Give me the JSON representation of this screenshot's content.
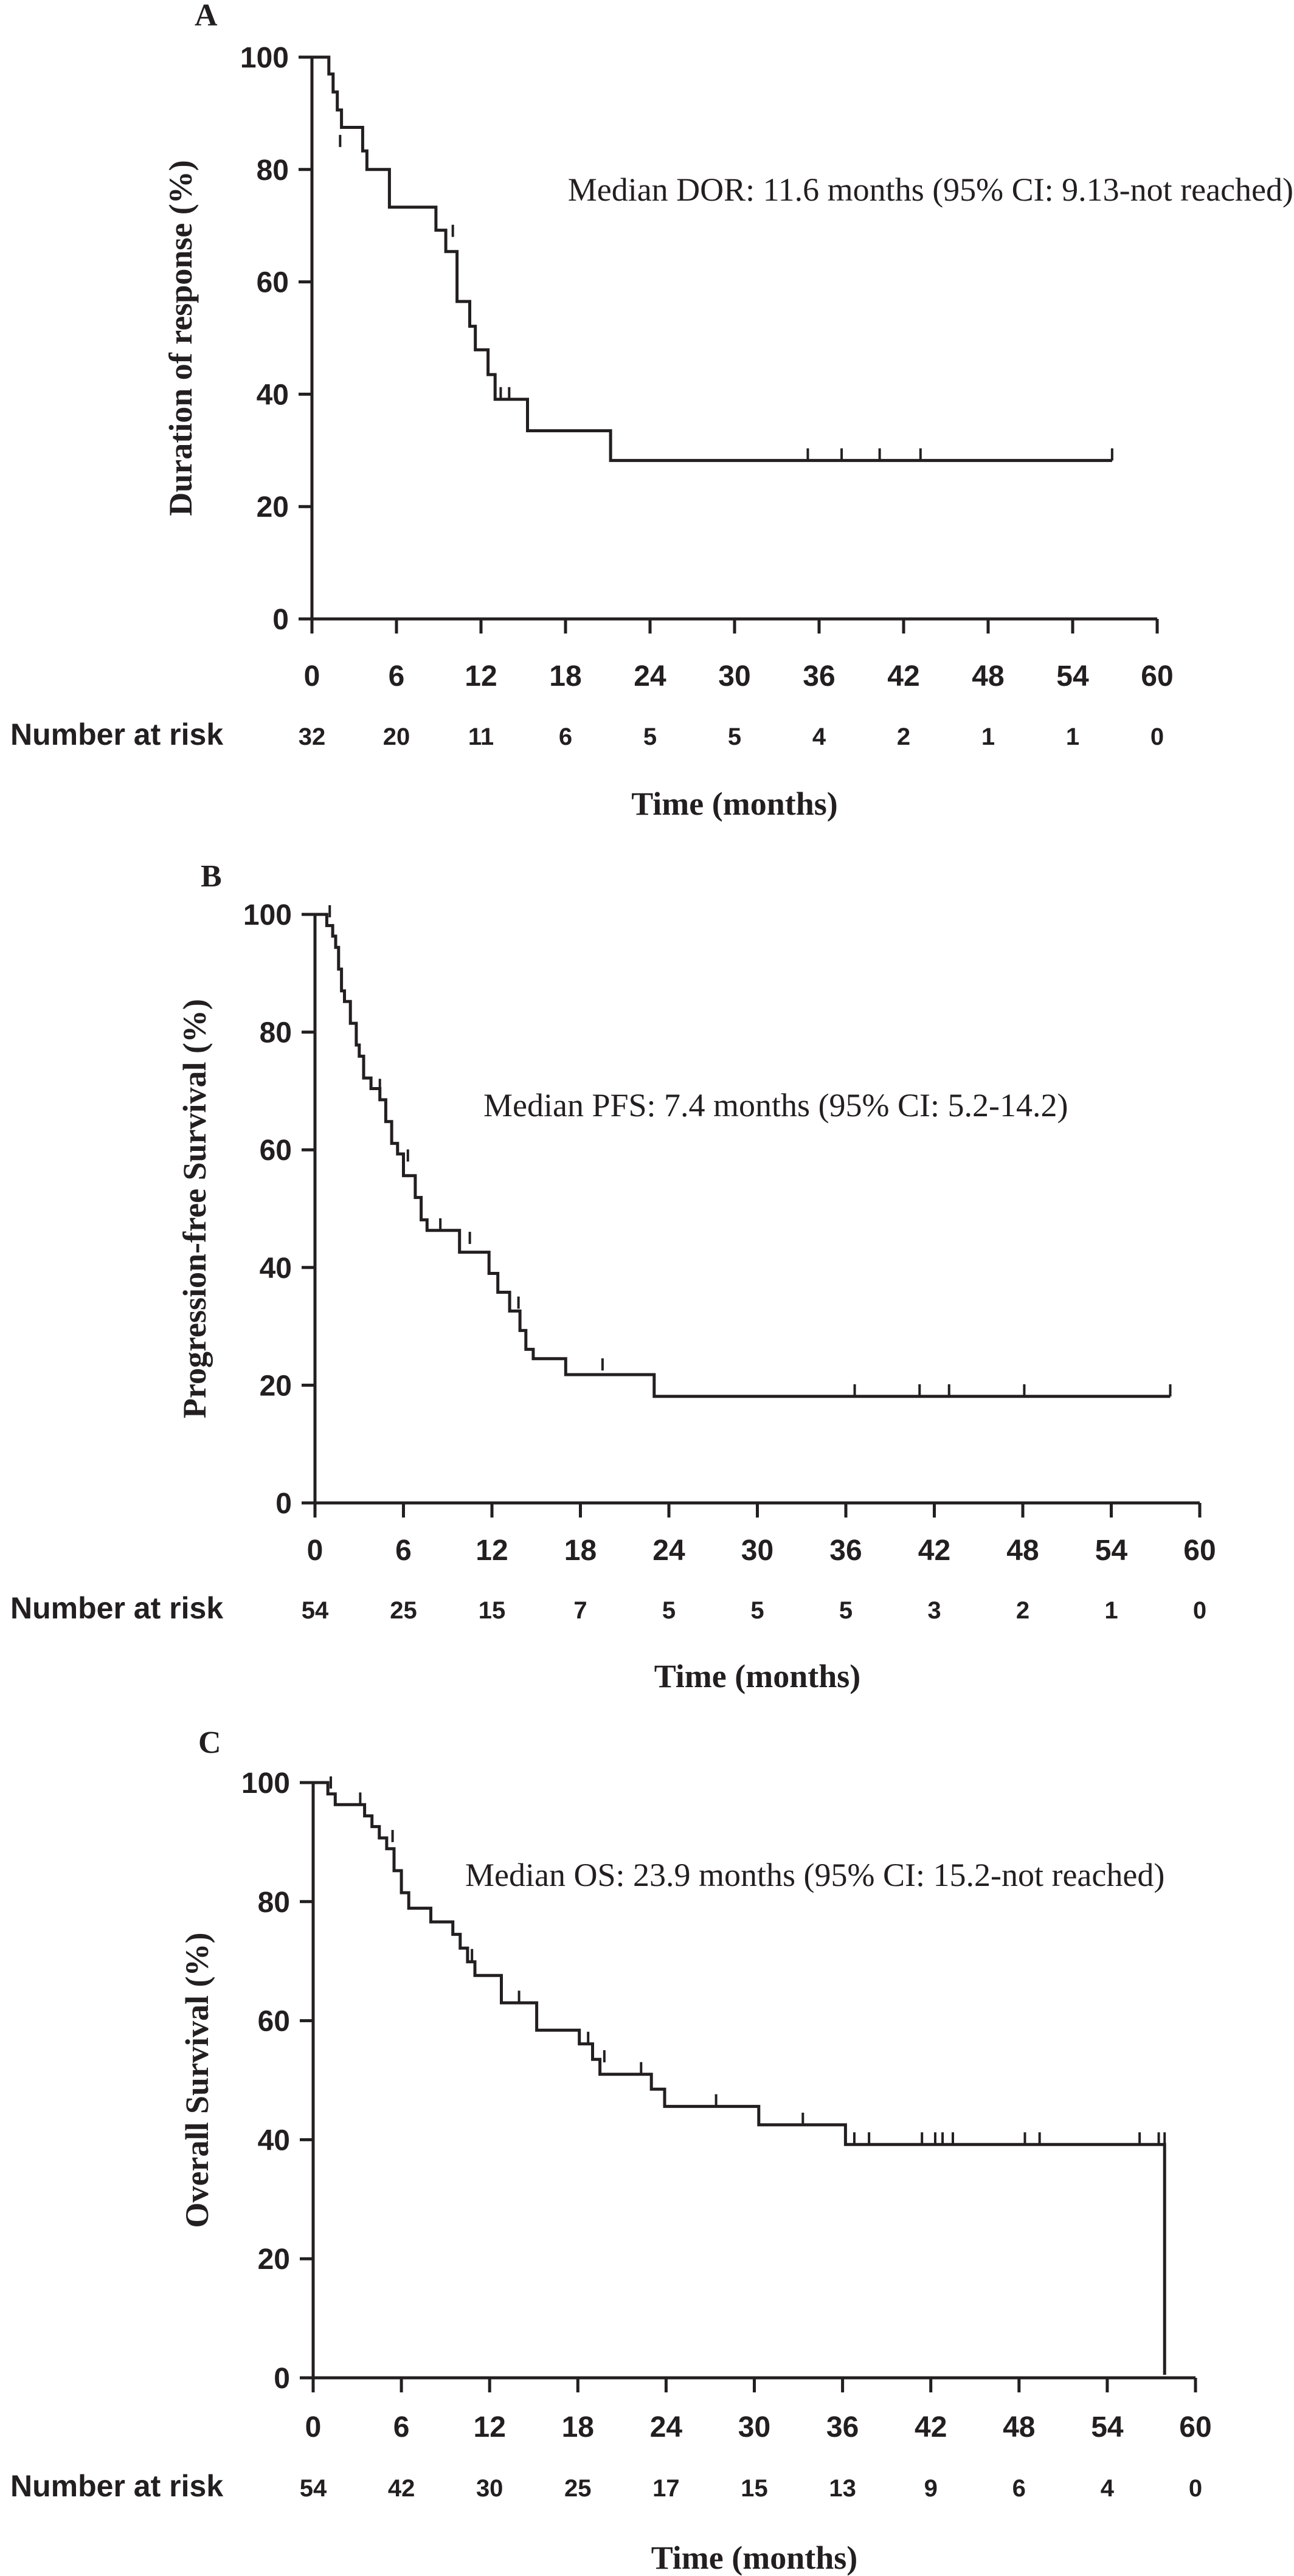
{
  "chart_data": [
    {
      "type": "line",
      "panel_label": "A",
      "ylabel": "Duration of response (%)",
      "xlabel": "Time (months)",
      "annotation": "Median DOR: 11.6 months (95% CI: 9.13-not reached)",
      "xlim": [
        0,
        60
      ],
      "ylim": [
        0,
        100
      ],
      "xticks": [
        0,
        6,
        12,
        18,
        24,
        30,
        36,
        42,
        48,
        54,
        60
      ],
      "yticks": [
        0,
        20,
        40,
        60,
        80,
        100
      ],
      "risk_title": "Number at risk",
      "risk_numbers": [
        "32",
        "20",
        "11",
        "6",
        "5",
        "5",
        "4",
        "2",
        "1",
        "1",
        "0"
      ],
      "curve": [
        [
          0,
          100
        ],
        [
          1.2,
          100
        ],
        [
          1.2,
          97
        ],
        [
          1.5,
          97
        ],
        [
          1.5,
          93.8
        ],
        [
          1.8,
          93.8
        ],
        [
          1.8,
          90.6
        ],
        [
          2.1,
          90.6
        ],
        [
          2.1,
          87.5
        ],
        [
          3.6,
          87.5
        ],
        [
          3.6,
          83.3
        ],
        [
          3.9,
          83.3
        ],
        [
          3.9,
          80
        ],
        [
          5.5,
          80
        ],
        [
          5.5,
          73.3
        ],
        [
          8.8,
          73.3
        ],
        [
          8.8,
          69.2
        ],
        [
          9.5,
          69.2
        ],
        [
          9.5,
          65.4
        ],
        [
          10.3,
          65.4
        ],
        [
          10.3,
          56.5
        ],
        [
          11.2,
          56.5
        ],
        [
          11.2,
          52.1
        ],
        [
          11.6,
          52.1
        ],
        [
          11.6,
          47.9
        ],
        [
          12.5,
          47.9
        ],
        [
          12.5,
          43.5
        ],
        [
          13,
          43.5
        ],
        [
          13,
          39.1
        ],
        [
          15.3,
          39.1
        ],
        [
          15.3,
          33.5
        ],
        [
          21.2,
          33.5
        ],
        [
          21.2,
          28.2
        ],
        [
          56.8,
          28.2
        ]
      ],
      "censors": [
        [
          2,
          84
        ],
        [
          10,
          68
        ],
        [
          13.4,
          39.1
        ],
        [
          14,
          39.1
        ],
        [
          35.2,
          28.2
        ],
        [
          37.6,
          28.2
        ],
        [
          40.3,
          28.2
        ],
        [
          43.2,
          28.2
        ],
        [
          56.8,
          28.2
        ]
      ],
      "risk_label_shift": [
        0,
        0,
        0,
        0,
        0,
        0,
        0,
        0,
        0,
        0,
        0
      ]
    },
    {
      "type": "line",
      "panel_label": "B",
      "ylabel": "Progression-free Survival (%)",
      "xlabel": "Time (months)",
      "annotation": "Median PFS: 7.4 months (95% CI: 5.2-14.2)",
      "xlim": [
        0,
        60
      ],
      "ylim": [
        0,
        100
      ],
      "xticks": [
        0,
        6,
        12,
        18,
        24,
        30,
        36,
        42,
        48,
        54,
        60
      ],
      "yticks": [
        0,
        20,
        40,
        60,
        80,
        100
      ],
      "risk_title": "Number at risk",
      "risk_numbers": [
        "54",
        "25",
        "15",
        "7",
        "5",
        "5",
        "5",
        "3",
        "2",
        "1",
        "0"
      ],
      "curve": [
        [
          0,
          100
        ],
        [
          0.8,
          100
        ],
        [
          0.8,
          98.1
        ],
        [
          1.2,
          98.1
        ],
        [
          1.2,
          96.3
        ],
        [
          1.4,
          96.3
        ],
        [
          1.4,
          94.4
        ],
        [
          1.6,
          94.4
        ],
        [
          1.6,
          90.7
        ],
        [
          1.8,
          90.7
        ],
        [
          1.8,
          87
        ],
        [
          2,
          87
        ],
        [
          2,
          85.2
        ],
        [
          2.4,
          85.2
        ],
        [
          2.4,
          81.5
        ],
        [
          2.8,
          81.5
        ],
        [
          2.8,
          77.8
        ],
        [
          3,
          77.8
        ],
        [
          3,
          75.9
        ],
        [
          3.3,
          75.9
        ],
        [
          3.3,
          72.2
        ],
        [
          3.8,
          72.2
        ],
        [
          3.8,
          70.4
        ],
        [
          4.4,
          70.4
        ],
        [
          4.4,
          68.5
        ],
        [
          4.8,
          68.5
        ],
        [
          4.8,
          64.8
        ],
        [
          5.2,
          64.8
        ],
        [
          5.2,
          61.1
        ],
        [
          5.6,
          61.1
        ],
        [
          5.6,
          59.3
        ],
        [
          6,
          59.3
        ],
        [
          6,
          55.6
        ],
        [
          6.8,
          55.6
        ],
        [
          6.8,
          51.9
        ],
        [
          7.2,
          51.9
        ],
        [
          7.2,
          48.1
        ],
        [
          7.6,
          48.1
        ],
        [
          7.6,
          46.3
        ],
        [
          9.8,
          46.3
        ],
        [
          9.8,
          42.6
        ],
        [
          11.8,
          42.6
        ],
        [
          11.8,
          39
        ],
        [
          12.4,
          39
        ],
        [
          12.4,
          35.8
        ],
        [
          13.2,
          35.8
        ],
        [
          13.2,
          32.6
        ],
        [
          13.9,
          32.6
        ],
        [
          13.9,
          29.3
        ],
        [
          14.3,
          29.3
        ],
        [
          14.3,
          26.1
        ],
        [
          14.8,
          26.1
        ],
        [
          14.8,
          24.5
        ],
        [
          17,
          24.5
        ],
        [
          17,
          21.8
        ],
        [
          23,
          21.8
        ],
        [
          23,
          18.1
        ],
        [
          58,
          18.1
        ]
      ],
      "censors": [
        [
          1,
          99.5
        ],
        [
          4.4,
          70
        ],
        [
          6.3,
          58
        ],
        [
          8.5,
          46.3
        ],
        [
          10.5,
          44
        ],
        [
          13.8,
          33
        ],
        [
          19.5,
          22.5
        ],
        [
          36.6,
          18.1
        ],
        [
          41,
          18.1
        ],
        [
          43,
          18.1
        ],
        [
          48.1,
          18.1
        ],
        [
          58,
          18.1
        ]
      ],
      "risk_label_shift": [
        0,
        0,
        0,
        0,
        0,
        0,
        0,
        0,
        0,
        0,
        0
      ]
    },
    {
      "type": "line",
      "panel_label": "C",
      "ylabel": "Overall Survival (%)",
      "xlabel": "Time (months)",
      "annotation": "Median OS: 23.9 months (95% CI: 15.2-not reached)",
      "xlim": [
        0,
        60
      ],
      "ylim": [
        0,
        100
      ],
      "xticks": [
        0,
        6,
        12,
        18,
        24,
        30,
        36,
        42,
        48,
        54,
        60
      ],
      "yticks": [
        0,
        20,
        40,
        60,
        80,
        100
      ],
      "risk_title": "Number at risk",
      "risk_numbers": [
        "54",
        "42",
        "30",
        "25",
        "17",
        "15",
        "13",
        "9",
        "6",
        "4",
        "0"
      ],
      "curve": [
        [
          0,
          100
        ],
        [
          1,
          100
        ],
        [
          1,
          98.1
        ],
        [
          1.5,
          98.1
        ],
        [
          1.5,
          96.3
        ],
        [
          3.5,
          96.3
        ],
        [
          3.5,
          94.4
        ],
        [
          4,
          94.4
        ],
        [
          4,
          92.6
        ],
        [
          4.5,
          92.6
        ],
        [
          4.5,
          90.7
        ],
        [
          5,
          90.7
        ],
        [
          5,
          88.9
        ],
        [
          5.5,
          88.9
        ],
        [
          5.5,
          85.2
        ],
        [
          6,
          85.2
        ],
        [
          6,
          81.5
        ],
        [
          6.5,
          81.5
        ],
        [
          6.5,
          78.9
        ],
        [
          8,
          78.9
        ],
        [
          8,
          76.6
        ],
        [
          9.5,
          76.6
        ],
        [
          9.5,
          74.5
        ],
        [
          10,
          74.5
        ],
        [
          10,
          72.2
        ],
        [
          10.5,
          72.2
        ],
        [
          10.5,
          69.9
        ],
        [
          11,
          69.9
        ],
        [
          11,
          67.6
        ],
        [
          12.8,
          67.6
        ],
        [
          12.8,
          63
        ],
        [
          15.2,
          63
        ],
        [
          15.2,
          58.4
        ],
        [
          18.1,
          58.4
        ],
        [
          18.1,
          56.1
        ],
        [
          19,
          56.1
        ],
        [
          19,
          53.5
        ],
        [
          19.5,
          53.5
        ],
        [
          19.5,
          51
        ],
        [
          23,
          51
        ],
        [
          23,
          48.5
        ],
        [
          23.9,
          48.5
        ],
        [
          23.9,
          45.6
        ],
        [
          30.3,
          45.6
        ],
        [
          30.3,
          42.5
        ],
        [
          36.2,
          42.5
        ],
        [
          36.2,
          39.2
        ],
        [
          57.9,
          39.2
        ],
        [
          57.9,
          0.5
        ]
      ],
      "censors": [
        [
          1.2,
          99
        ],
        [
          3.2,
          96.3
        ],
        [
          5.4,
          90
        ],
        [
          10.8,
          70
        ],
        [
          14,
          63
        ],
        [
          18.7,
          56.1
        ],
        [
          19.8,
          53
        ],
        [
          22.3,
          51
        ],
        [
          27.4,
          45.6
        ],
        [
          33.3,
          42.5
        ],
        [
          36.8,
          39.2
        ],
        [
          37.8,
          39.2
        ],
        [
          41.4,
          39.2
        ],
        [
          42.3,
          39.2
        ],
        [
          42.8,
          39.2
        ],
        [
          43.5,
          39.2
        ],
        [
          48.4,
          39.2
        ],
        [
          49.4,
          39.2
        ],
        [
          56.2,
          39.2
        ],
        [
          57.5,
          39.2
        ],
        [
          57.9,
          39.2
        ]
      ],
      "risk_label_shift": [
        0,
        0,
        0,
        0,
        0,
        0,
        0,
        0,
        0,
        0,
        0
      ]
    }
  ]
}
